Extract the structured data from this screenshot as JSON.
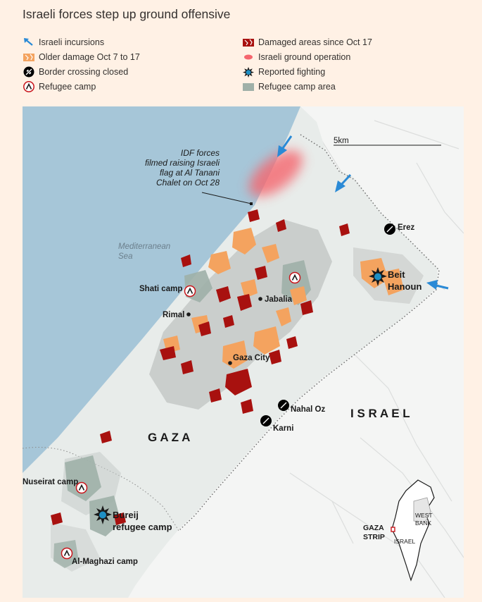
{
  "title": "Israeli forces step up ground offensive",
  "legend": {
    "incursions": "Israeli incursions",
    "older_damage": "Older damage Oct 7 to 17",
    "border_closed": "Border crossing closed",
    "refugee_camp": "Refugee camp",
    "damaged_since": "Damaged areas since Oct 17",
    "ground_operation": "Israeli ground operation",
    "reported_fighting": "Reported fighting",
    "camp_area": "Refugee camp area"
  },
  "colors": {
    "sea": "#a6c6d8",
    "land_gaza": "#e8ecea",
    "land_israel": "#f4f5f4",
    "damage_recent": "#a8110f",
    "damage_older": "#f4a35f",
    "camp_area": "#9fb0a8",
    "ground_op": "#f5666e",
    "arrow": "#2a8ad6",
    "fighting": "#1e8fc4"
  },
  "map": {
    "scale_label": "5km",
    "sea_label_line1": "Mediterranean",
    "sea_label_line2": "Sea",
    "annotation_line1": "IDF forces",
    "annotation_line2": "filmed raising Israeli",
    "annotation_line3": "flag at Al Tanani",
    "annotation_line4": "Chalet on Oct 28",
    "gaza_label": "G A Z A",
    "israel_label": "I S R A E L",
    "places": {
      "erez": "Erez",
      "beit_hanoun_1": "Beit",
      "beit_hanoun_2": "Hanoun",
      "shati": "Shati camp",
      "jabalia": "Jabalia",
      "rimal": "Rimal",
      "gaza_city": "Gaza City",
      "nahal_oz": "Nahal Oz",
      "karni": "Karni",
      "nuseirat": "Nuseirat camp",
      "bureij_1": "Bureij",
      "bureij_2": "refugee camp",
      "maghazi": "Al-Maghazi camp"
    },
    "inset": {
      "west_bank_1": "WEST",
      "west_bank_2": "BANK",
      "israel": "ISRAEL",
      "gaza_1": "GAZA",
      "gaza_2": "STRIP"
    }
  }
}
